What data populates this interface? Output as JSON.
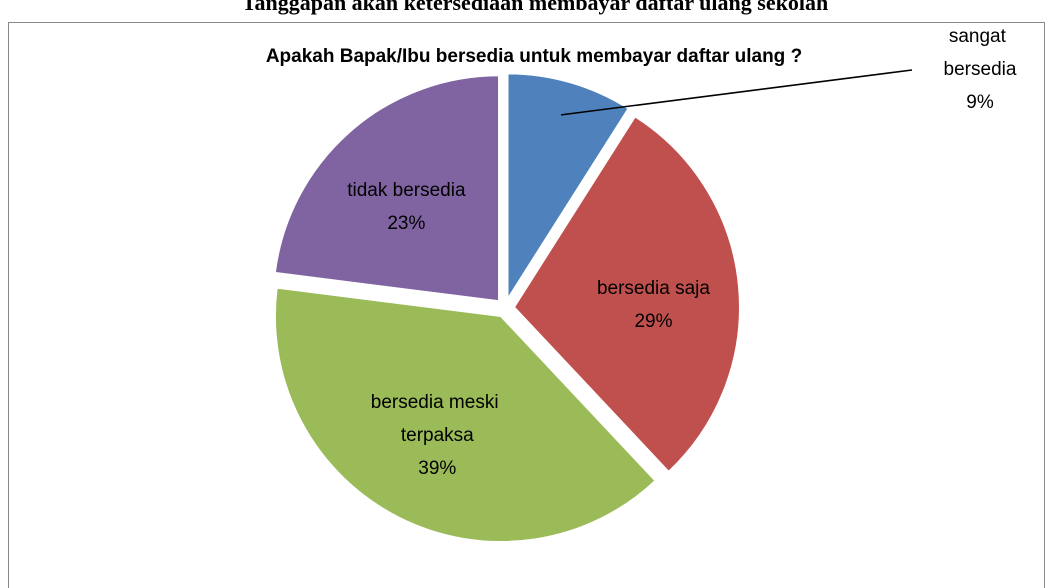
{
  "chart_data": {
    "type": "pie",
    "page_title": "Tanggapan akan ketersediaan membayar daftar ulang sekolah",
    "title": "Apakah Bapak/Ibu bersedia untuk membayar daftar ulang ?",
    "categories": [
      "sangat bersedia",
      "bersedia saja",
      "bersedia meski terpaksa",
      "tidak bersedia"
    ],
    "values": [
      9,
      29,
      39,
      23
    ],
    "value_labels": [
      "9%",
      "29%",
      "39%",
      "23%"
    ],
    "colors": [
      "#4f81bd",
      "#c0504d",
      "#9bbb59",
      "#8064a2"
    ]
  }
}
